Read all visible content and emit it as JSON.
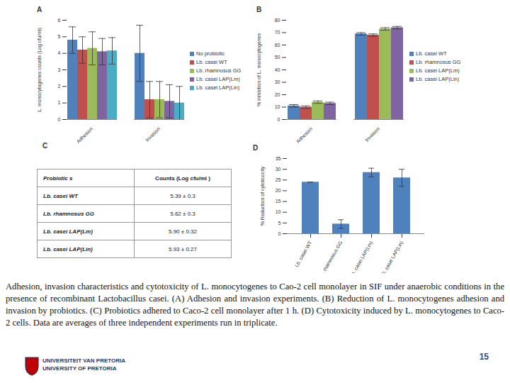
{
  "chart_data": [
    {
      "type": "bar",
      "title": "A",
      "y_label": "L. monocytogenes counts (Log cfu/ml)",
      "categories": [
        "Adhesion",
        "Invasion"
      ],
      "series": [
        {
          "name": "No probiotic",
          "color": "#4f81bd",
          "values": [
            4.8,
            4.0
          ],
          "errors": [
            0.8,
            1.7
          ]
        },
        {
          "name": "Lb. casei WT",
          "color": "#c0504d",
          "values": [
            4.2,
            1.2
          ],
          "errors": [
            0.8,
            1.1
          ]
        },
        {
          "name": "Lb. rhamnosus GG",
          "color": "#9bbb59",
          "values": [
            4.3,
            1.2
          ],
          "errors": [
            1.0,
            1.1
          ]
        },
        {
          "name": "Lb. casei LAP(Lm)",
          "color": "#8064a2",
          "values": [
            4.1,
            1.1
          ],
          "errors": [
            0.8,
            1.0
          ]
        },
        {
          "name": "Lb. casei LAP(Lin)",
          "color": "#4bacc6",
          "values": [
            4.15,
            1.0
          ],
          "errors": [
            0.8,
            1.0
          ]
        }
      ],
      "ylim": [
        0,
        6
      ],
      "yticks": [
        0,
        1,
        2,
        3,
        4,
        5,
        6
      ],
      "grid": false,
      "legend": "right"
    },
    {
      "type": "bar",
      "title": "B",
      "y_label": "% Inhibition of L. monocytogenes",
      "categories": [
        "Adhesion",
        "Invasion"
      ],
      "series": [
        {
          "name": "Lb. casei WT",
          "color": "#4f81bd",
          "values": [
            11,
            69
          ],
          "errors": [
            1,
            1
          ]
        },
        {
          "name": "Lb. rhamnosus GG",
          "color": "#c0504d",
          "values": [
            10,
            68
          ],
          "errors": [
            1,
            1
          ]
        },
        {
          "name": "Lb. casei LAP(Lm)",
          "color": "#9bbb59",
          "values": [
            14,
            73
          ],
          "errors": [
            1,
            1
          ]
        },
        {
          "name": "Lb. casei LAP(Lin)",
          "color": "#8064a2",
          "values": [
            13,
            74
          ],
          "errors": [
            1,
            1
          ]
        }
      ],
      "ylim": [
        0,
        80
      ],
      "yticks": [
        0,
        10,
        20,
        30,
        40,
        50,
        60,
        70,
        80
      ],
      "grid": false,
      "legend": "right"
    },
    {
      "type": "bar",
      "title": "D",
      "y_label": "% Reduction of cytotoxicity",
      "categories": [
        "Lb. casei WT",
        "Lb. rhamnosus GG",
        "Lb. casei LAP(Lm)",
        "Lb. casei LAP(Lin)"
      ],
      "values": [
        24,
        4.5,
        28.5,
        26
      ],
      "errors": [
        0,
        2,
        2,
        4
      ],
      "color": "#4f81bd",
      "ylim": [
        0,
        35
      ],
      "yticks": [
        0,
        5,
        10,
        15,
        20,
        25,
        30,
        35
      ],
      "grid": false
    }
  ],
  "table": {
    "title": "C",
    "header": [
      "Probiotic s",
      "Counts (Log cfu/ml )"
    ],
    "rows": [
      [
        "Lb. casei WT",
        "5.39 ± 0.3"
      ],
      [
        "Lb. rhamnosus GG",
        "5.62 ± 0.3"
      ],
      [
        "Lb. casei LAP(Lm)",
        "5.90 ± 0.32"
      ],
      [
        "Lb. casei LAP(Lin)",
        "5.93 ± 0.27"
      ]
    ]
  },
  "caption": "Adhesion, invasion characteristics and cytotoxicity of L. monocytogenes to Cao-2 cell monolayer in SIF under anaerobic conditions in the presence of recombinant Lactobacillus casei. (A) Adhesion and invasion experiments. (B) Reduction of L. monocytogenes adhesion and invasion by probiotics. (C) Probiotics adhered to Caco-2 cell monolayer after 1 h. (D) Cytotoxicity induced by L. monocytogenes to Caco-2 cells. Data are averages of three independent experiments run in triplicate.",
  "page": "15",
  "logo": [
    "UNIVERSITEIT VAN PRETORIA",
    "UNIVERSITY OF PRETORIA"
  ]
}
